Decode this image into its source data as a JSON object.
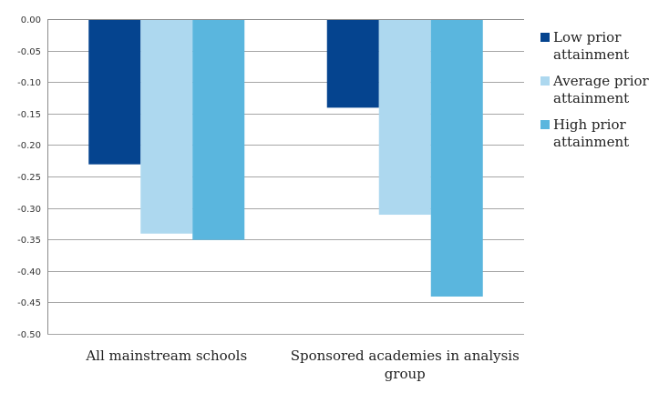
{
  "chart_data": {
    "type": "bar",
    "categories": [
      "All mainstream schools",
      "Sponsored academies in analysis group"
    ],
    "series": [
      {
        "name": "Low prior attainment",
        "values": [
          -0.23,
          -0.14
        ],
        "color": "#05448f"
      },
      {
        "name": "Average prior attainment",
        "values": [
          -0.34,
          -0.31
        ],
        "color": "#add8ef"
      },
      {
        "name": "High prior attainment",
        "values": [
          -0.35,
          -0.44
        ],
        "color": "#5ab6de"
      }
    ],
    "ylim": [
      -0.5,
      0.0
    ],
    "yticks": [
      "0.00",
      "-0.05",
      "-0.10",
      "-0.15",
      "-0.20",
      "-0.25",
      "-0.30",
      "-0.35",
      "-0.40",
      "-0.45",
      "-0.50"
    ],
    "ytick_values": [
      0,
      -0.05,
      -0.1,
      -0.15,
      -0.2,
      -0.25,
      -0.3,
      -0.35,
      -0.4,
      -0.45,
      -0.5
    ],
    "grid": true,
    "legend_position": "right",
    "title": "",
    "xlabel": "",
    "ylabel": ""
  }
}
